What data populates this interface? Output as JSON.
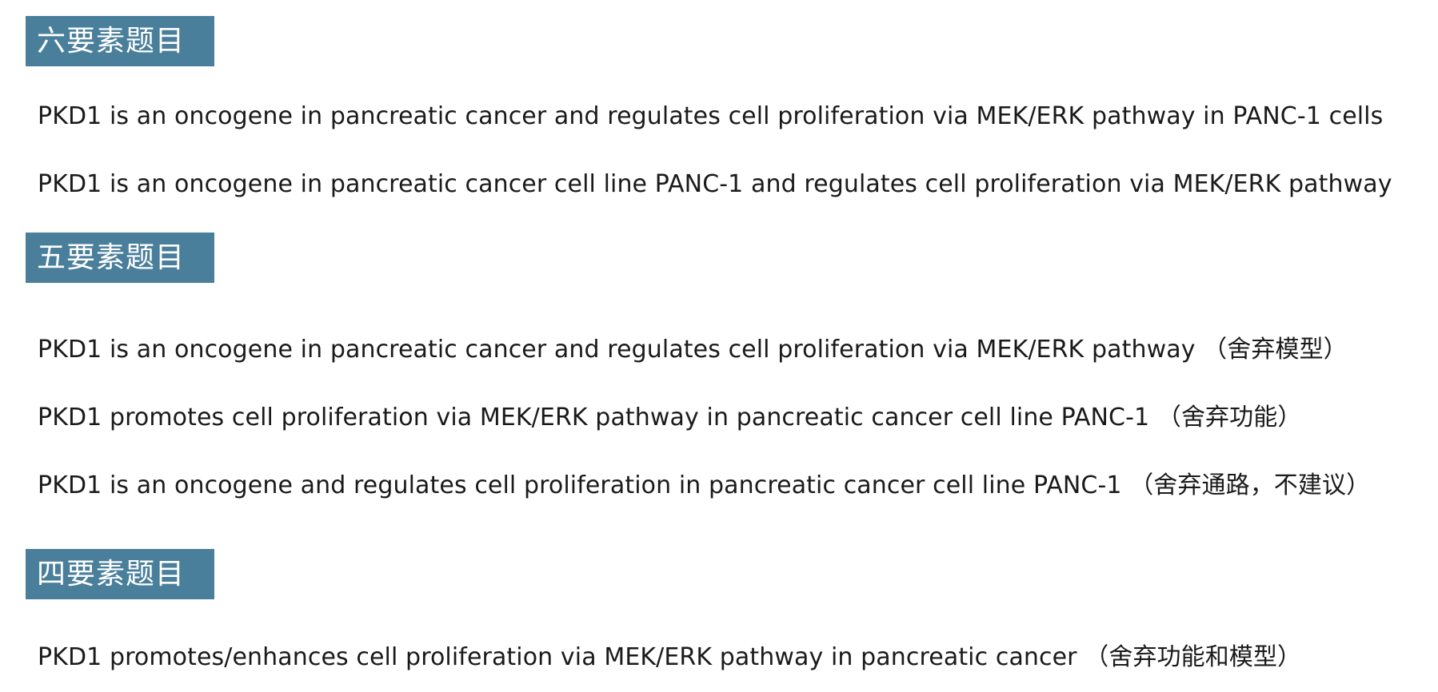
{
  "sections": [
    {
      "heading": "六要素题目",
      "items": [
        "PKD1 is an oncogene in pancreatic cancer and regulates cell proliferation via MEK/ERK pathway in PANC-1 cells",
        "PKD1 is an oncogene in pancreatic cancer cell line PANC-1 and regulates cell proliferation via MEK/ERK pathway"
      ]
    },
    {
      "heading": "五要素题目",
      "items": [
        "PKD1 is an oncogene in pancreatic cancer and regulates cell proliferation via MEK/ERK pathway （舍弃模型）",
        "PKD1 promotes cell proliferation via MEK/ERK pathway in pancreatic cancer cell line PANC-1 （舍弃功能）",
        "PKD1 is an oncogene and regulates cell proliferation in pancreatic cancer cell line PANC-1 （舍弃通路，不建议）"
      ]
    },
    {
      "heading": "四要素题目",
      "items": [
        "PKD1 promotes/enhances cell proliferation via MEK/ERK pathway in pancreatic cancer （舍弃功能和模型）"
      ]
    }
  ]
}
